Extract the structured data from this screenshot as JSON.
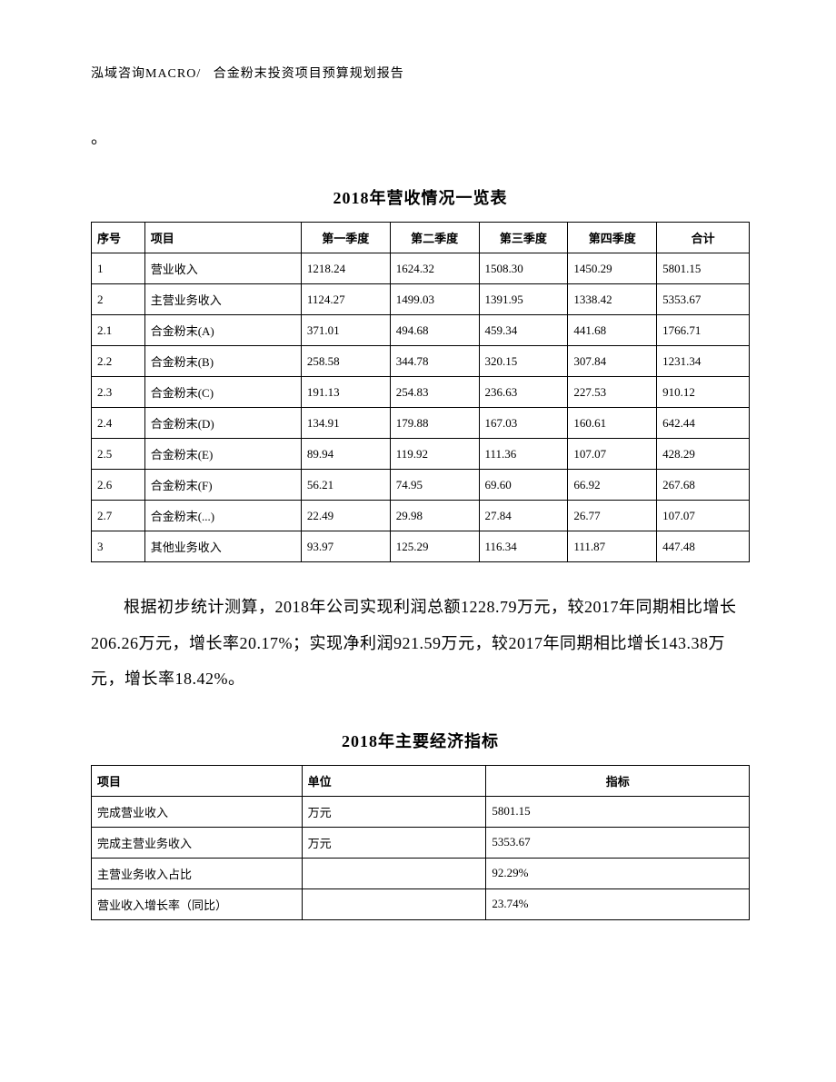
{
  "header": {
    "left": "泓域咨询MACRO/",
    "right": "合金粉末投资项目预算规划报告"
  },
  "period_mark": "。",
  "table1": {
    "title": "2018年营收情况一览表",
    "headers": {
      "seq": "序号",
      "item": "项目",
      "q1": "第一季度",
      "q2": "第二季度",
      "q3": "第三季度",
      "q4": "第四季度",
      "total": "合计"
    },
    "rows": [
      {
        "seq": "1",
        "item": "营业收入",
        "q1": "1218.24",
        "q2": "1624.32",
        "q3": "1508.30",
        "q4": "1450.29",
        "total": "5801.15"
      },
      {
        "seq": "2",
        "item": "主营业务收入",
        "q1": "1124.27",
        "q2": "1499.03",
        "q3": "1391.95",
        "q4": "1338.42",
        "total": "5353.67"
      },
      {
        "seq": "2.1",
        "item": "合金粉末(A)",
        "q1": "371.01",
        "q2": "494.68",
        "q3": "459.34",
        "q4": "441.68",
        "total": "1766.71"
      },
      {
        "seq": "2.2",
        "item": "合金粉末(B)",
        "q1": "258.58",
        "q2": "344.78",
        "q3": "320.15",
        "q4": "307.84",
        "total": "1231.34"
      },
      {
        "seq": "2.3",
        "item": "合金粉末(C)",
        "q1": "191.13",
        "q2": "254.83",
        "q3": "236.63",
        "q4": "227.53",
        "total": "910.12"
      },
      {
        "seq": "2.4",
        "item": "合金粉末(D)",
        "q1": "134.91",
        "q2": "179.88",
        "q3": "167.03",
        "q4": "160.61",
        "total": "642.44"
      },
      {
        "seq": "2.5",
        "item": "合金粉末(E)",
        "q1": "89.94",
        "q2": "119.92",
        "q3": "111.36",
        "q4": "107.07",
        "total": "428.29"
      },
      {
        "seq": "2.6",
        "item": "合金粉末(F)",
        "q1": "56.21",
        "q2": "74.95",
        "q3": "69.60",
        "q4": "66.92",
        "total": "267.68"
      },
      {
        "seq": "2.7",
        "item": "合金粉末(...)",
        "q1": "22.49",
        "q2": "29.98",
        "q3": "27.84",
        "q4": "26.77",
        "total": "107.07"
      },
      {
        "seq": "3",
        "item": "其他业务收入",
        "q1": "93.97",
        "q2": "125.29",
        "q3": "116.34",
        "q4": "111.87",
        "total": "447.48"
      }
    ]
  },
  "paragraph": "根据初步统计测算，2018年公司实现利润总额1228.79万元，较2017年同期相比增长206.26万元，增长率20.17%；实现净利润921.59万元，较2017年同期相比增长143.38万元，增长率18.42%。",
  "table2": {
    "title": "2018年主要经济指标",
    "headers": {
      "item": "项目",
      "unit": "单位",
      "value": "指标"
    },
    "rows": [
      {
        "item": "完成营业收入",
        "unit": "万元",
        "value": "5801.15"
      },
      {
        "item": "完成主营业务收入",
        "unit": "万元",
        "value": "5353.67"
      },
      {
        "item": "主营业务收入占比",
        "unit": "",
        "value": "92.29%"
      },
      {
        "item": "营业收入增长率（同比）",
        "unit": "",
        "value": "23.74%"
      }
    ]
  }
}
